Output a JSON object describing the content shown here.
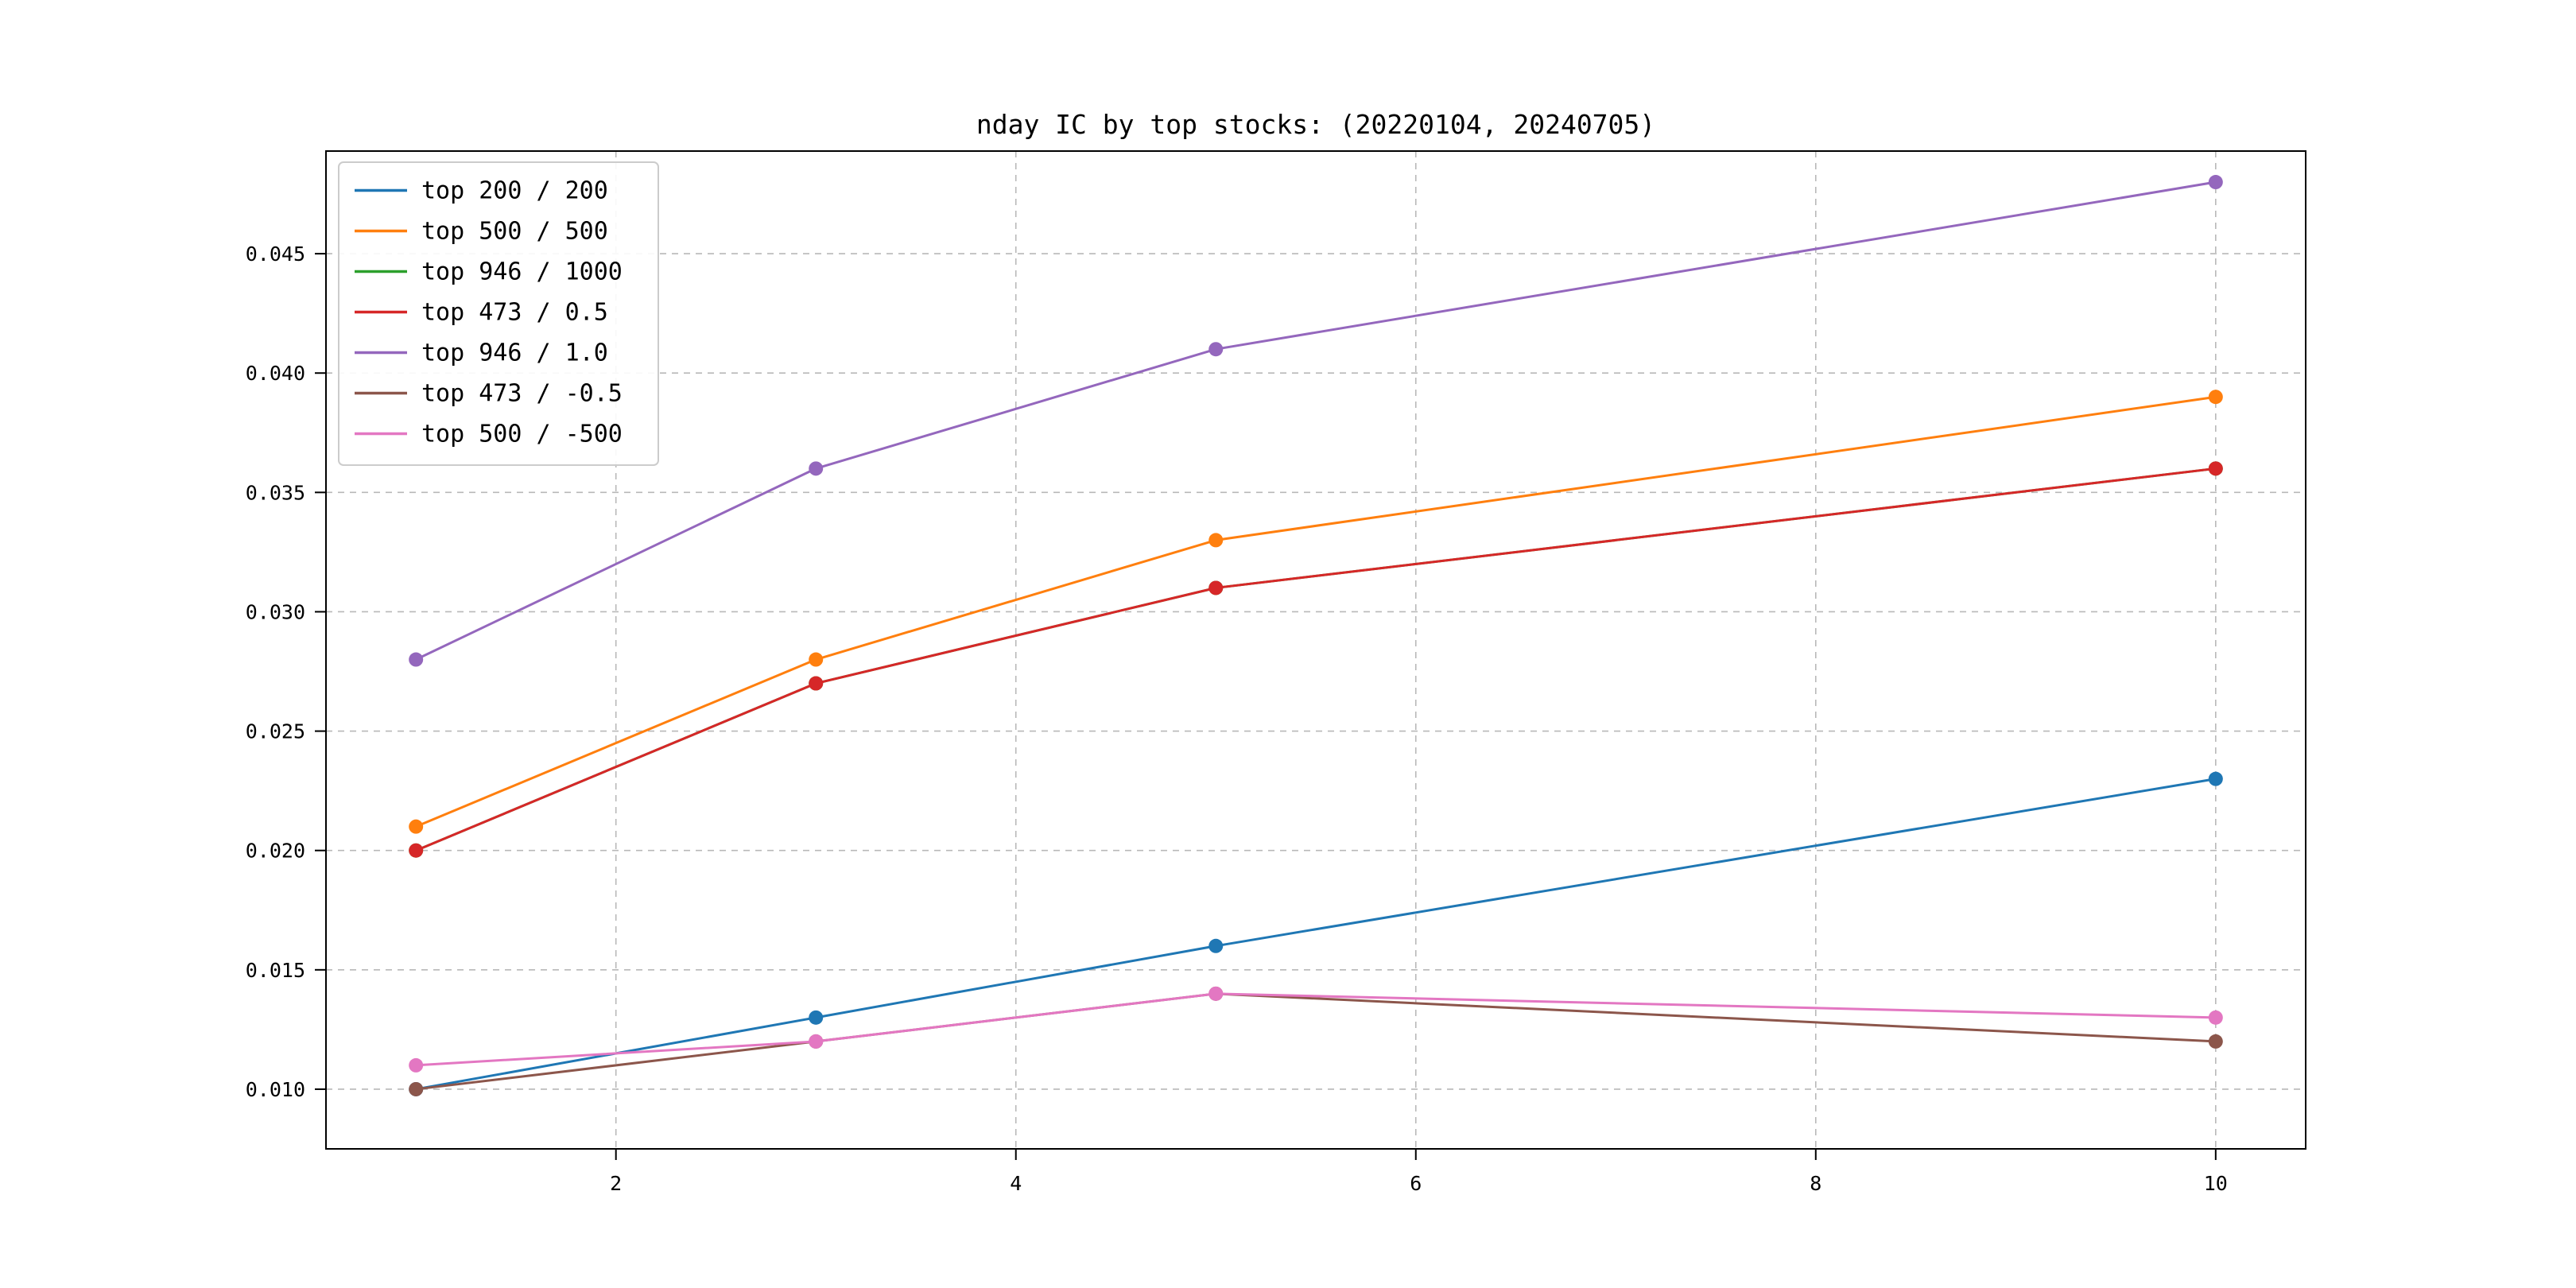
{
  "chart_data": {
    "type": "line",
    "title": "nday IC by top stocks: (20220104, 20240705)",
    "xlabel": "",
    "ylabel": "",
    "x": [
      1,
      3,
      5,
      10
    ],
    "series": [
      {
        "name": "top 200 / 200",
        "color": "#1f77b4",
        "values": [
          0.01,
          0.013,
          0.016,
          0.023
        ]
      },
      {
        "name": "top 500 / 500",
        "color": "#ff7f0e",
        "values": [
          0.021,
          0.028,
          0.033,
          0.039
        ]
      },
      {
        "name": "top 946 / 1000",
        "color": "#2ca02c",
        "values": [
          0.02,
          0.027,
          0.031,
          0.036
        ]
      },
      {
        "name": "top 473 / 0.5",
        "color": "#d62728",
        "values": [
          0.02,
          0.027,
          0.031,
          0.036
        ]
      },
      {
        "name": "top 946 / 1.0",
        "color": "#9467bd",
        "values": [
          0.028,
          0.036,
          0.041,
          0.048
        ]
      },
      {
        "name": "top 473 / -0.5",
        "color": "#8c564b",
        "values": [
          0.01,
          0.012,
          0.014,
          0.012
        ]
      },
      {
        "name": "top 500 / -500",
        "color": "#e377c2",
        "values": [
          0.011,
          0.012,
          0.014,
          0.013
        ]
      }
    ],
    "xlim": [
      0.55,
      10.45
    ],
    "ylim": [
      0.0075,
      0.0493
    ],
    "x_ticks": [
      {
        "v": 2,
        "label": "2"
      },
      {
        "v": 4,
        "label": "4"
      },
      {
        "v": 6,
        "label": "6"
      },
      {
        "v": 8,
        "label": "8"
      },
      {
        "v": 10,
        "label": "10"
      }
    ],
    "y_ticks": [
      {
        "v": 0.01,
        "label": "0.010"
      },
      {
        "v": 0.015,
        "label": "0.015"
      },
      {
        "v": 0.02,
        "label": "0.020"
      },
      {
        "v": 0.025,
        "label": "0.025"
      },
      {
        "v": 0.03,
        "label": "0.030"
      },
      {
        "v": 0.035,
        "label": "0.035"
      },
      {
        "v": 0.04,
        "label": "0.040"
      },
      {
        "v": 0.045,
        "label": "0.045"
      }
    ],
    "grid": true,
    "grid_color": "#b8b8b8",
    "legend_position": "upper-left",
    "background": "#ffffff"
  }
}
